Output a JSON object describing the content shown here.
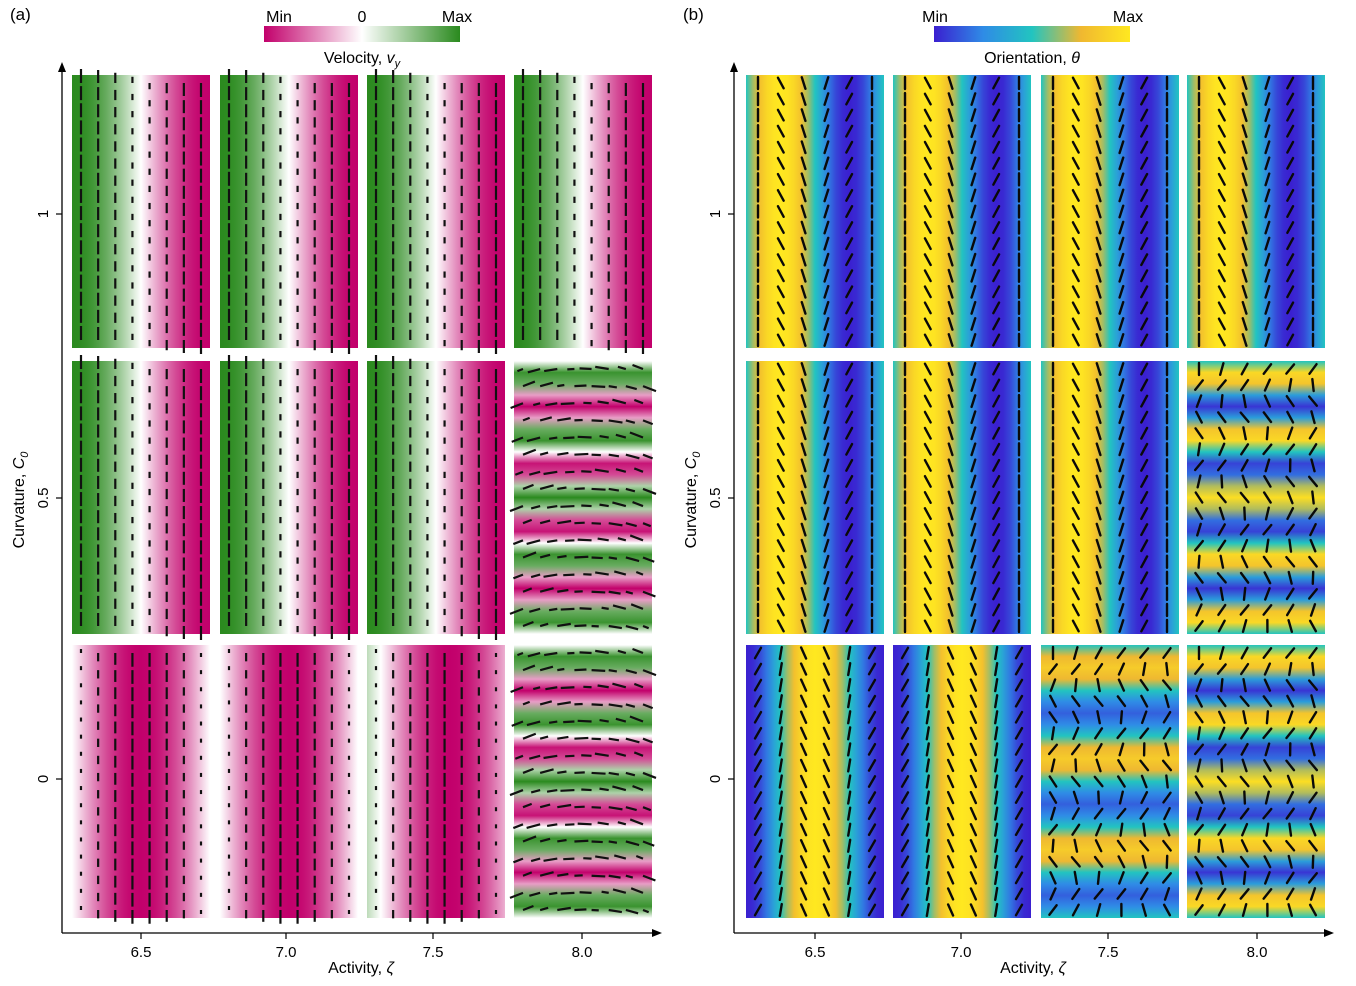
{
  "panels": [
    {
      "label": "(a)",
      "colorbar": {
        "min_label": "Min",
        "mid_label": "0",
        "max_label": "Max",
        "title": "Velocity, ",
        "title_var": "v",
        "title_sub": "y",
        "colors": [
          "#c2006b",
          "#ffffff",
          "#2a8a1e"
        ]
      },
      "xlabel": "Activity, ",
      "xlabel_var": "ζ",
      "ylabel": "Curvature, ",
      "ylabel_var": "C",
      "ylabel_sub": "0",
      "field": "velocity"
    },
    {
      "label": "(b)",
      "colorbar": {
        "min_label": "Min",
        "max_label": "Max",
        "title": "Orientation, ",
        "title_var": "θ",
        "colors": [
          "#3a1fd0",
          "#2f8be6",
          "#22c4c0",
          "#f0b830",
          "#ffe820"
        ]
      },
      "xlabel": "Activity, ",
      "xlabel_var": "ζ",
      "ylabel": "Curvature, ",
      "ylabel_var": "C",
      "ylabel_sub": "0",
      "field": "orientation"
    }
  ],
  "chart_data": {
    "type": "heatmap",
    "x_categories": [
      "6.5",
      "7.0",
      "7.5",
      "8.0"
    ],
    "y_categories": [
      "0",
      "0.5",
      "1"
    ],
    "grid": [
      {
        "curvature": "1",
        "activity": [
          "6.5",
          "7.0",
          "7.5",
          "8.0"
        ],
        "pattern": [
          "vertical bands",
          "vertical bands",
          "vertical bands",
          "vertical bands"
        ]
      },
      {
        "curvature": "0.5",
        "activity": [
          "6.5",
          "7.0",
          "7.5",
          "8.0"
        ],
        "pattern": [
          "vertical bands",
          "vertical bands",
          "vertical bands",
          "horizontal stripes"
        ]
      },
      {
        "curvature": "0",
        "activity": [
          "6.5",
          "7.0",
          "7.5",
          "8.0"
        ],
        "pattern": [
          "vertical bands",
          "vertical bands",
          "wavy bands",
          "horizontal stripes"
        ]
      }
    ]
  }
}
